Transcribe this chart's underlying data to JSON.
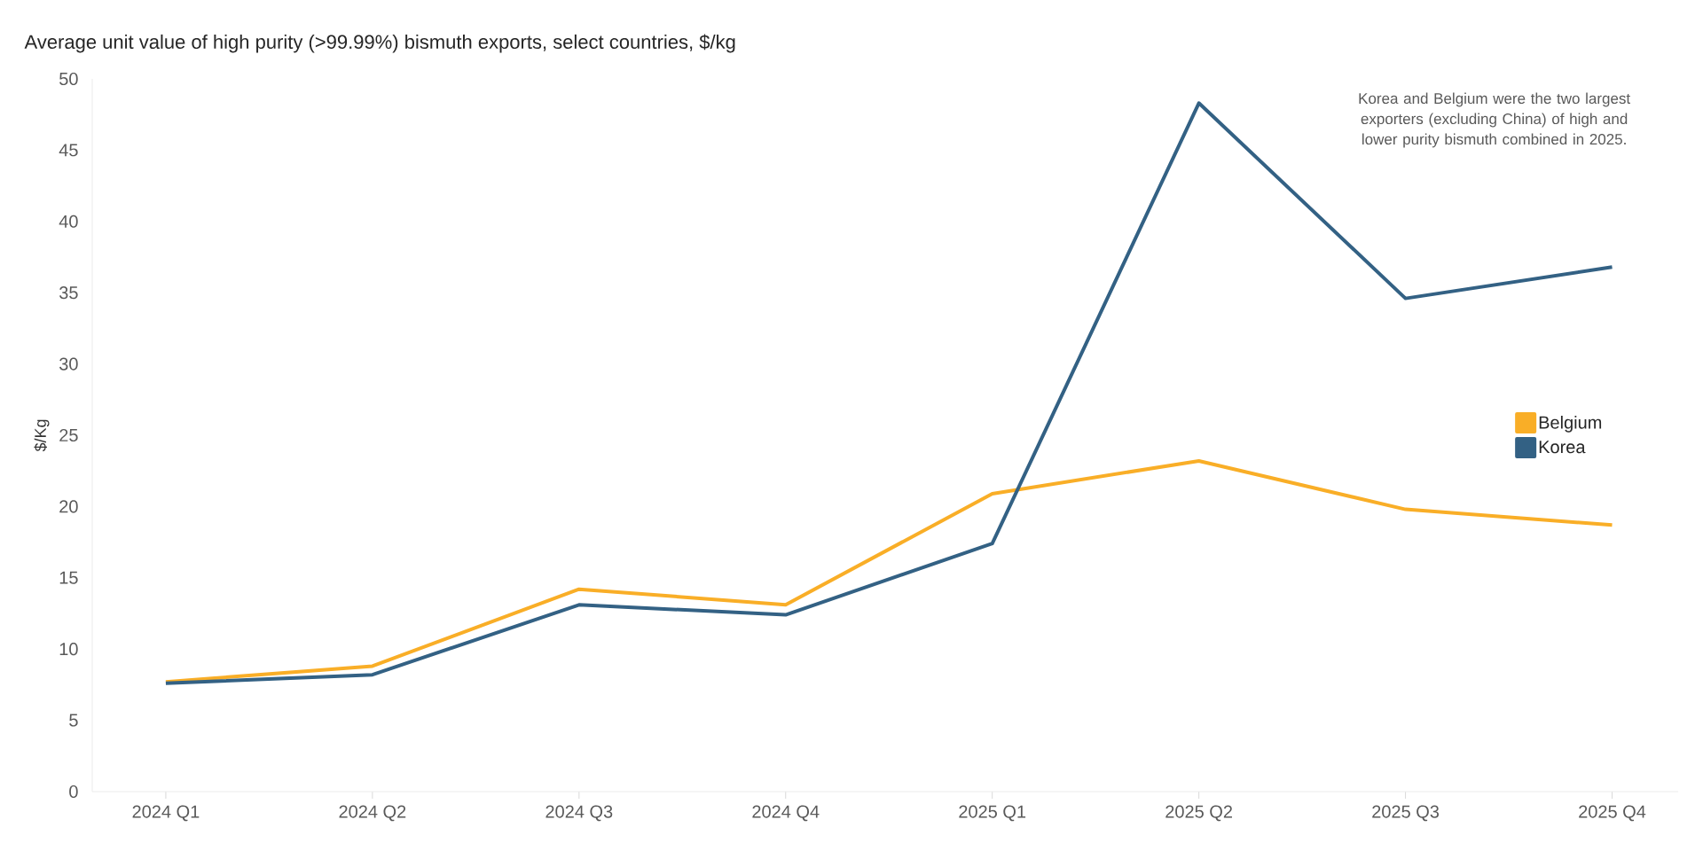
{
  "chart_data": {
    "type": "line",
    "title": "Average unit value of high purity (>99.99%) bismuth exports, select countries, $/kg",
    "ylabel": "$/Kg",
    "annotations": [
      "Korea and Belgium were the two largest exporters (excluding China) of high and lower purity bismuth combined in 2025."
    ],
    "categories": [
      "2024 Q1",
      "2024 Q2",
      "2024 Q3",
      "2024 Q4",
      "2025 Q1",
      "2025 Q2",
      "2025 Q3",
      "2025 Q4"
    ],
    "series": [
      {
        "name": "Belgium",
        "color": "#f9ae27",
        "values": [
          7.7,
          8.8,
          14.2,
          13.1,
          20.9,
          23.2,
          19.8,
          18.7
        ]
      },
      {
        "name": "Korea",
        "color": "#336184",
        "values": [
          7.6,
          8.2,
          13.1,
          12.4,
          17.4,
          48.3,
          34.6,
          36.8
        ]
      }
    ],
    "ylim": [
      0,
      50
    ],
    "yticks": [
      0,
      5,
      10,
      15,
      20,
      25,
      30,
      35,
      40,
      45,
      50
    ],
    "grid": false,
    "legend": "right",
    "marker": "none",
    "line_style": "solid"
  }
}
